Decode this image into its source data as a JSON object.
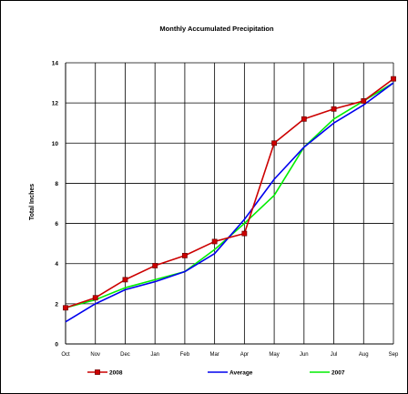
{
  "chart_data": {
    "type": "line",
    "title": "Monthly Accumulated Precipitation",
    "xlabel": "",
    "ylabel": "Total Inches",
    "categories": [
      "Oct",
      "Nov",
      "Dec",
      "Jan",
      "Feb",
      "Mar",
      "Apr",
      "May",
      "Jun",
      "Jul",
      "Aug",
      "Sep"
    ],
    "ylim": [
      0,
      14
    ],
    "yticks": [
      0,
      2,
      4,
      6,
      8,
      10,
      12,
      14
    ],
    "grid": true,
    "legend_position": "bottom",
    "series": [
      {
        "name": "2008",
        "color": "#cc0000",
        "marker": "square",
        "marker_color": "#cc0000",
        "values": [
          1.8,
          2.3,
          3.2,
          3.9,
          4.4,
          5.1,
          5.5,
          10.0,
          11.2,
          11.7,
          12.1,
          13.2
        ]
      },
      {
        "name": "Average",
        "color": "#0000ee",
        "marker": "none",
        "values": [
          1.1,
          2.0,
          2.7,
          3.1,
          3.6,
          4.5,
          6.2,
          8.2,
          9.8,
          11.0,
          11.9,
          13.0
        ]
      },
      {
        "name": "2007",
        "color": "#00ee00",
        "marker": "none",
        "values": [
          1.8,
          2.2,
          2.8,
          3.2,
          3.6,
          4.7,
          6.0,
          7.4,
          9.8,
          11.2,
          12.1,
          13.0
        ]
      }
    ]
  }
}
